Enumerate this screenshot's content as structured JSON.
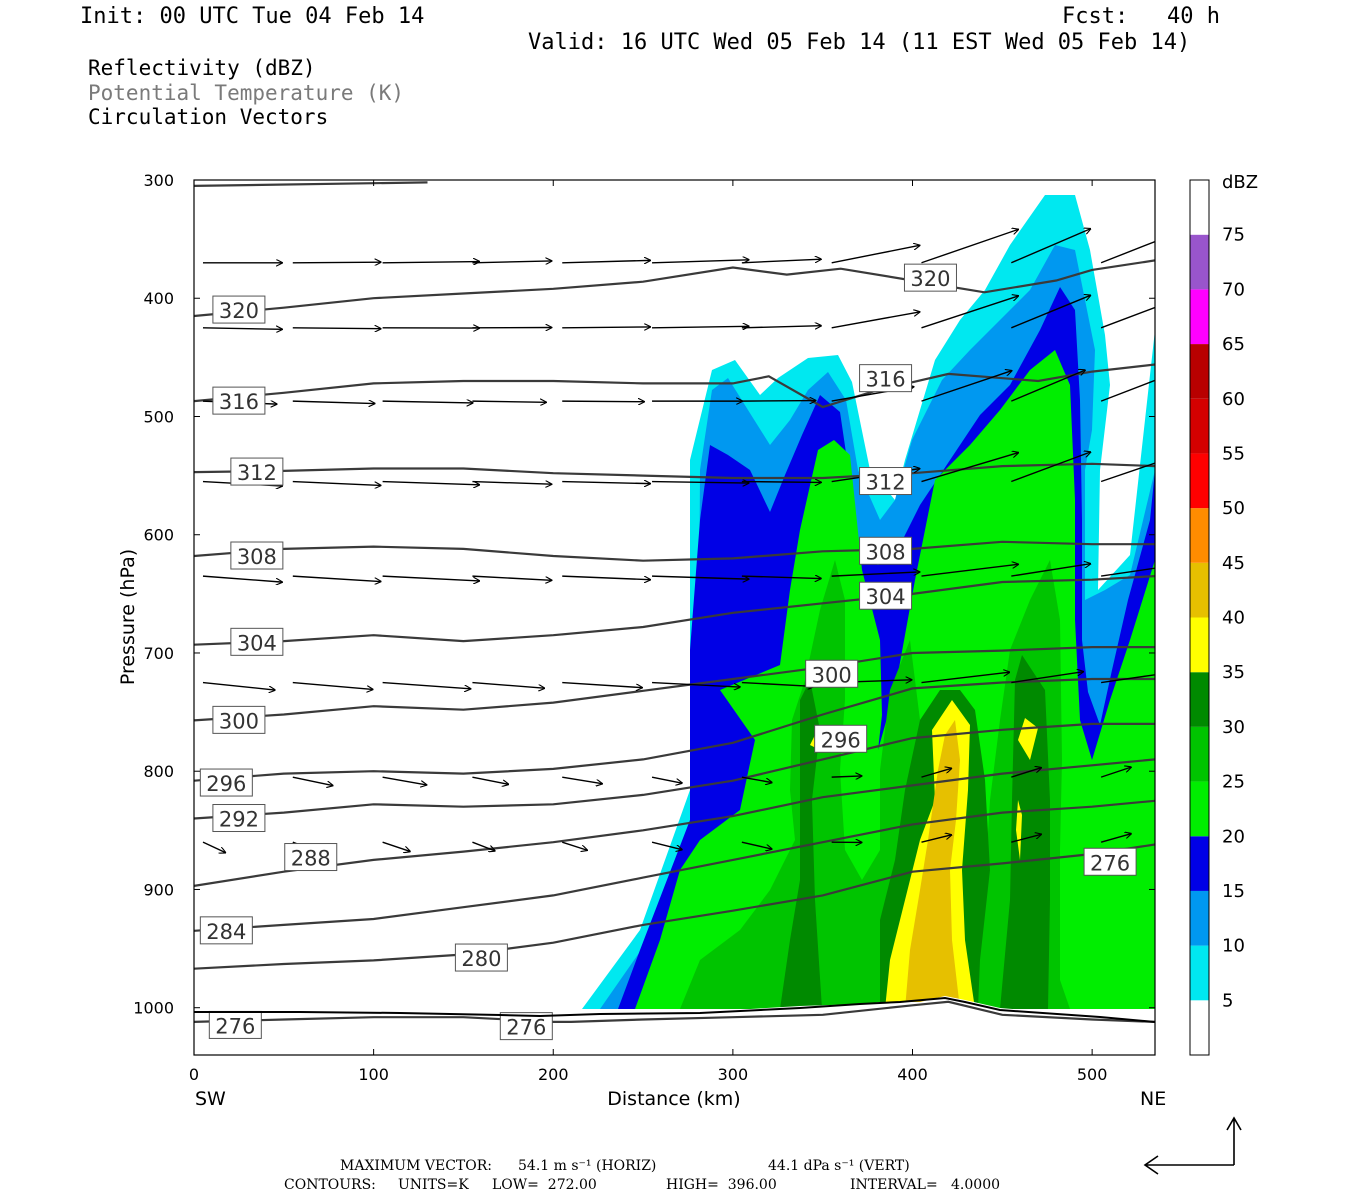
{
  "header": {
    "init": "Init: 00 UTC Tue 04 Feb 14",
    "fcst_label": "Fcst:",
    "fcst_value": "40 h",
    "valid": "Valid: 16 UTC Wed 05 Feb 14 (11 EST Wed 05 Feb 14)"
  },
  "legend_titles": {
    "reflectivity": "Reflectivity (dBZ)",
    "theta": "Potential Temperature (K)",
    "vectors": "Circulation Vectors"
  },
  "footer": {
    "max_vector_label": "MAXIMUM VECTOR:",
    "max_vector_horiz": "54.1 m s⁻¹ (HORIZ)",
    "max_vector_vert": "44.1 dPa s⁻¹ (VERT)",
    "contours_label": "CONTOURS:",
    "contours_units": "UNITS=K",
    "contours_low": "LOW=  272.00",
    "contours_high": "HIGH=  396.00",
    "contours_interval": "INTERVAL=   4.0000"
  },
  "chart_data": {
    "type": "heatmap",
    "xlabel": "Distance (km)",
    "ylabel": "Pressure (hPa)",
    "xlim": [
      0,
      535
    ],
    "ylim": [
      1040,
      300
    ],
    "x_ticks": [
      0,
      100,
      200,
      300,
      400,
      500
    ],
    "y_ticks": [
      300,
      400,
      500,
      600,
      700,
      800,
      900,
      1000
    ],
    "x_end_labels": {
      "left": "SW",
      "right": "NE"
    },
    "colorbar": {
      "unit": "dBZ",
      "levels": [
        5,
        10,
        15,
        20,
        25,
        30,
        35,
        40,
        45,
        50,
        55,
        60,
        65,
        70,
        75
      ],
      "colors": [
        "#ffffff",
        "#00e8f0",
        "#0098f0",
        "#0000e6",
        "#00ee00",
        "#00c400",
        "#008a00",
        "#ffff00",
        "#e6c000",
        "#ff8c00",
        "#ff0000",
        "#d40000",
        "#b80000",
        "#ff00ff",
        "#9955cc",
        "#ffffff"
      ]
    },
    "theta_contours": [
      {
        "label": "276",
        "points": [
          [
            0,
            1012
          ],
          [
            50,
            1010
          ],
          [
            100,
            1008
          ],
          [
            150,
            1008
          ],
          [
            200,
            1012
          ],
          [
            210,
            1012
          ],
          [
            250,
            1010
          ],
          [
            300,
            1008
          ],
          [
            350,
            1006
          ],
          [
            400,
            998
          ],
          [
            420,
            995
          ],
          [
            450,
            1006
          ],
          [
            500,
            1010
          ],
          [
            535,
            1012
          ]
        ]
      },
      {
        "label": "280",
        "points": [
          [
            0,
            967
          ],
          [
            50,
            963
          ],
          [
            100,
            960
          ],
          [
            150,
            955
          ],
          [
            200,
            945
          ],
          [
            250,
            930
          ],
          [
            300,
            918
          ],
          [
            350,
            905
          ],
          [
            400,
            885
          ],
          [
            450,
            878
          ],
          [
            500,
            870
          ],
          [
            535,
            862
          ]
        ]
      },
      {
        "label": "284",
        "points": [
          [
            0,
            935
          ],
          [
            50,
            930
          ],
          [
            100,
            925
          ],
          [
            150,
            915
          ],
          [
            200,
            905
          ],
          [
            250,
            890
          ],
          [
            300,
            875
          ],
          [
            350,
            860
          ],
          [
            400,
            845
          ],
          [
            450,
            835
          ],
          [
            500,
            830
          ],
          [
            535,
            825
          ]
        ]
      },
      {
        "label": "288",
        "points": [
          [
            0,
            897
          ],
          [
            50,
            885
          ],
          [
            100,
            875
          ],
          [
            150,
            868
          ],
          [
            200,
            860
          ],
          [
            250,
            850
          ],
          [
            300,
            838
          ],
          [
            350,
            822
          ],
          [
            400,
            812
          ],
          [
            450,
            802
          ],
          [
            500,
            795
          ],
          [
            535,
            790
          ]
        ]
      },
      {
        "label": "292",
        "points": [
          [
            0,
            840
          ],
          [
            50,
            835
          ],
          [
            100,
            828
          ],
          [
            150,
            830
          ],
          [
            200,
            828
          ],
          [
            250,
            820
          ],
          [
            300,
            808
          ],
          [
            350,
            790
          ],
          [
            400,
            772
          ],
          [
            450,
            765
          ],
          [
            500,
            760
          ],
          [
            535,
            760
          ]
        ]
      },
      {
        "label": "296",
        "points": [
          [
            0,
            808
          ],
          [
            50,
            802
          ],
          [
            100,
            800
          ],
          [
            150,
            802
          ],
          [
            200,
            798
          ],
          [
            250,
            790
          ],
          [
            300,
            776
          ],
          [
            350,
            752
          ],
          [
            400,
            730
          ],
          [
            450,
            725
          ],
          [
            500,
            722
          ],
          [
            535,
            722
          ]
        ]
      },
      {
        "label": "300",
        "points": [
          [
            0,
            757
          ],
          [
            50,
            752
          ],
          [
            100,
            745
          ],
          [
            150,
            748
          ],
          [
            200,
            742
          ],
          [
            250,
            732
          ],
          [
            300,
            722
          ],
          [
            350,
            712
          ],
          [
            400,
            700
          ],
          [
            450,
            698
          ],
          [
            500,
            695
          ],
          [
            535,
            695
          ]
        ]
      },
      {
        "label": "304",
        "points": [
          [
            0,
            693
          ],
          [
            50,
            690
          ],
          [
            100,
            685
          ],
          [
            150,
            690
          ],
          [
            200,
            685
          ],
          [
            250,
            678
          ],
          [
            300,
            666
          ],
          [
            350,
            658
          ],
          [
            400,
            650
          ],
          [
            450,
            640
          ],
          [
            500,
            638
          ],
          [
            535,
            635
          ]
        ]
      },
      {
        "label": "308",
        "points": [
          [
            0,
            618
          ],
          [
            50,
            612
          ],
          [
            100,
            610
          ],
          [
            150,
            612
          ],
          [
            200,
            618
          ],
          [
            250,
            622
          ],
          [
            300,
            620
          ],
          [
            350,
            614
          ],
          [
            400,
            612
          ],
          [
            450,
            606
          ],
          [
            500,
            608
          ],
          [
            535,
            608
          ]
        ]
      },
      {
        "label": "312",
        "points": [
          [
            0,
            547
          ],
          [
            50,
            546
          ],
          [
            100,
            544
          ],
          [
            150,
            544
          ],
          [
            200,
            548
          ],
          [
            250,
            550
          ],
          [
            300,
            552
          ],
          [
            350,
            552
          ],
          [
            400,
            548
          ],
          [
            450,
            542
          ],
          [
            500,
            540
          ],
          [
            535,
            542
          ]
        ]
      },
      {
        "label": "316",
        "points": [
          [
            0,
            487
          ],
          [
            50,
            480
          ],
          [
            100,
            472
          ],
          [
            150,
            470
          ],
          [
            200,
            470
          ],
          [
            250,
            472
          ],
          [
            300,
            472
          ],
          [
            320,
            466
          ],
          [
            350,
            492
          ],
          [
            380,
            478
          ],
          [
            420,
            464
          ],
          [
            470,
            470
          ],
          [
            500,
            462
          ],
          [
            535,
            456
          ]
        ]
      },
      {
        "label": "320",
        "points": [
          [
            0,
            415
          ],
          [
            50,
            408
          ],
          [
            100,
            400
          ],
          [
            150,
            396
          ],
          [
            200,
            392
          ],
          [
            250,
            386
          ],
          [
            300,
            374
          ],
          [
            330,
            380
          ],
          [
            360,
            375
          ],
          [
            400,
            385
          ],
          [
            440,
            395
          ],
          [
            480,
            385
          ],
          [
            500,
            376
          ],
          [
            535,
            368
          ]
        ]
      },
      {
        "label": "",
        "points": [
          [
            0,
            305
          ],
          [
            130,
            302
          ]
        ]
      }
    ]
  }
}
